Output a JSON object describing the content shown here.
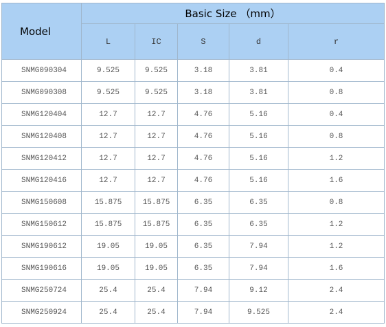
{
  "table": {
    "model_header": "Model",
    "group_header": "Basic Size （mm）",
    "columns": [
      "L",
      "IC",
      "S",
      "d",
      "r"
    ],
    "rows": [
      [
        "SNMG090304",
        "9.525",
        "9.525",
        "3.18",
        "3.81",
        "0.4"
      ],
      [
        "SNMG090308",
        "9.525",
        "9.525",
        "3.18",
        "3.81",
        "0.8"
      ],
      [
        "SNMG120404",
        "12.7",
        "12.7",
        "4.76",
        "5.16",
        "0.4"
      ],
      [
        "SNMG120408",
        "12.7",
        "12.7",
        "4.76",
        "5.16",
        "0.8"
      ],
      [
        "SNMG120412",
        "12.7",
        "12.7",
        "4.76",
        "5.16",
        "1.2"
      ],
      [
        "SNMG120416",
        "12.7",
        "12.7",
        "4.76",
        "5.16",
        "1.6"
      ],
      [
        "SNMG150608",
        "15.875",
        "15.875",
        "6.35",
        "6.35",
        "0.8"
      ],
      [
        "SNMG150612",
        "15.875",
        "15.875",
        "6.35",
        "6.35",
        "1.2"
      ],
      [
        "SNMG190612",
        "19.05",
        "19.05",
        "6.35",
        "7.94",
        "1.2"
      ],
      [
        "SNMG190616",
        "19.05",
        "19.05",
        "6.35",
        "7.94",
        "1.6"
      ],
      [
        "SNMG250724",
        "25.4",
        "25.4",
        "7.94",
        "9.12",
        "2.4"
      ],
      [
        "SNMG250924",
        "25.4",
        "25.4",
        "7.94",
        "9.525",
        "2.4"
      ]
    ]
  }
}
